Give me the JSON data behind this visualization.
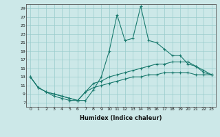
{
  "xlabel": "Humidex (Indice chaleur)",
  "x": [
    0,
    1,
    2,
    3,
    4,
    5,
    6,
    7,
    8,
    9,
    10,
    11,
    12,
    13,
    14,
    15,
    16,
    17,
    18,
    19,
    20,
    21,
    22,
    23
  ],
  "line_max": [
    13,
    10.5,
    9.5,
    8.5,
    8.0,
    7.5,
    7.5,
    7.5,
    10.0,
    13.0,
    19.0,
    27.5,
    21.5,
    22.0,
    29.5,
    21.5,
    21.0,
    19.5,
    18.0,
    18.0,
    16.0,
    15.5,
    14.0,
    13.5
  ],
  "line_avg": [
    13,
    10.5,
    9.5,
    9.0,
    8.5,
    8.0,
    7.5,
    9.5,
    11.5,
    12.0,
    13.0,
    13.5,
    14.0,
    14.5,
    15.0,
    15.5,
    16.0,
    16.0,
    16.5,
    16.5,
    16.5,
    15.5,
    14.5,
    13.5
  ],
  "line_min": [
    13,
    10.5,
    9.5,
    9.0,
    8.5,
    8.0,
    7.5,
    9.5,
    10.5,
    11.0,
    11.5,
    12.0,
    12.5,
    13.0,
    13.0,
    13.5,
    13.5,
    14.0,
    14.0,
    14.0,
    14.0,
    13.5,
    13.5,
    13.5
  ],
  "color": "#1a7a6e",
  "bg_color": "#cce8e8",
  "grid_color": "#99cccc",
  "ylim": [
    6,
    30
  ],
  "yticks": [
    7,
    9,
    11,
    13,
    15,
    17,
    19,
    21,
    23,
    25,
    27,
    29
  ],
  "xticks": [
    0,
    1,
    2,
    3,
    4,
    5,
    6,
    7,
    8,
    9,
    10,
    11,
    12,
    13,
    14,
    15,
    16,
    17,
    18,
    19,
    20,
    21,
    22,
    23
  ]
}
